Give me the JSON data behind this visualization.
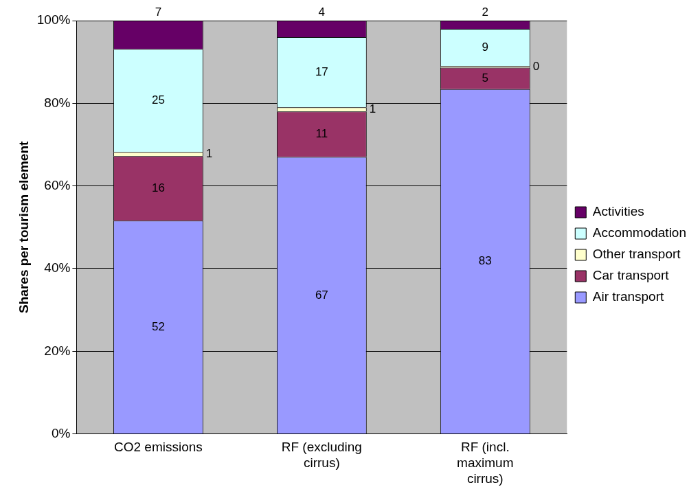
{
  "chart_data": {
    "type": "bar",
    "stacked": true,
    "ylabel": "Shares per tourism element",
    "categories": [
      "CO2 emissions",
      "RF (excluding cirrus)",
      "RF (incl. maximum cirrus)"
    ],
    "series": [
      {
        "name": "Air transport",
        "color": "#9999ff",
        "values": [
          51.6,
          67,
          83.4
        ],
        "value_labels": [
          "52",
          "67",
          "83"
        ]
      },
      {
        "name": "Car transport",
        "color": "#993366",
        "values": [
          15.6,
          11,
          5.2
        ],
        "value_labels": [
          "16",
          "11",
          "5"
        ]
      },
      {
        "name": "Other transport",
        "color": "#ffffcc",
        "values": [
          1.0,
          1,
          0.4
        ],
        "value_labels": [
          "1",
          "1",
          "0"
        ]
      },
      {
        "name": "Accommodation",
        "color": "#ccffff",
        "values": [
          24.9,
          17,
          9.0
        ],
        "value_labels": [
          "25",
          "17",
          "9"
        ]
      },
      {
        "name": "Activities",
        "color": "#660066",
        "values": [
          6.9,
          4,
          2.0
        ],
        "value_labels": [
          "7",
          "4",
          "2"
        ]
      }
    ],
    "ylim": [
      0,
      100
    ],
    "yticks": [
      {
        "value": 0,
        "label": "0%"
      },
      {
        "value": 20,
        "label": "20%"
      },
      {
        "value": 40,
        "label": "40%"
      },
      {
        "value": 60,
        "label": "60%"
      },
      {
        "value": 80,
        "label": "80%"
      },
      {
        "value": 100,
        "label": "100%"
      }
    ],
    "grid": "y",
    "legend": "right"
  }
}
